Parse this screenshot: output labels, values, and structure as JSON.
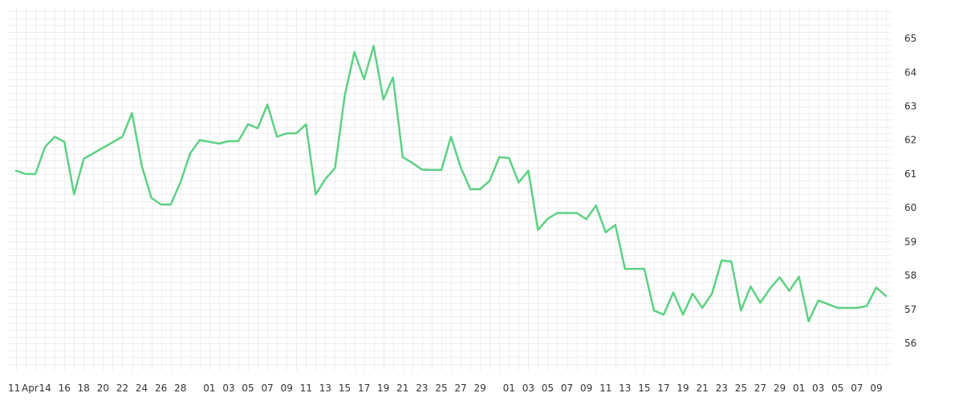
{
  "chart_data": {
    "type": "line",
    "title": "",
    "xlabel": "",
    "ylabel": "",
    "ylim": [
      55.2,
      65.9
    ],
    "y_ticks": [
      56,
      57,
      58,
      59,
      60,
      61,
      62,
      63,
      64,
      65
    ],
    "y_axis_position": "right",
    "grid": true,
    "legend": "none",
    "line_color": "#5cd183",
    "x_tick_labels": [
      "11",
      "Apr",
      "14",
      "16",
      "18",
      "20",
      "22",
      "24",
      "26",
      "28",
      "01",
      "03",
      "05",
      "07",
      "09",
      "11",
      "13",
      "15",
      "17",
      "19",
      "21",
      "23",
      "25",
      "27",
      "29",
      "01",
      "03",
      "05",
      "07",
      "09",
      "11",
      "13",
      "15",
      "17",
      "19",
      "21",
      "23",
      "25",
      "27",
      "29",
      "01",
      "03",
      "05",
      "07",
      "09"
    ],
    "series": [
      {
        "x": [
          "04-11",
          "04-12",
          "04-13",
          "04-14",
          "04-15",
          "04-16",
          "04-17",
          "04-18",
          "04-22",
          "04-23",
          "04-24",
          "04-25",
          "04-26",
          "04-27",
          "04-28",
          "04-29",
          "04-30",
          "05-02",
          "05-03",
          "05-04",
          "05-05",
          "05-06",
          "05-07",
          "05-08",
          "05-09",
          "05-10",
          "05-11",
          "05-12",
          "05-13",
          "05-14",
          "05-15",
          "05-16",
          "05-17",
          "05-18",
          "05-19",
          "05-20",
          "05-21",
          "05-22",
          "05-23",
          "05-24",
          "05-25",
          "05-26",
          "05-27",
          "05-28",
          "05-29",
          "05-30",
          "05-31",
          "06-01",
          "06-02",
          "06-03",
          "06-04",
          "06-05",
          "06-06",
          "06-07",
          "06-08",
          "06-09",
          "06-10",
          "06-11",
          "06-12",
          "06-13",
          "06-14",
          "06-15",
          "06-16",
          "06-17",
          "06-18",
          "06-19",
          "06-20",
          "06-21",
          "06-22",
          "06-23",
          "06-24",
          "06-25",
          "06-26",
          "06-27",
          "06-28",
          "06-29",
          "06-30",
          "07-01",
          "07-02",
          "07-03",
          "07-04",
          "07-05",
          "07-06",
          "07-07",
          "07-08",
          "07-09",
          "07-10"
        ],
        "values": [
          61.1,
          61.0,
          61.0,
          61.8,
          62.1,
          61.95,
          60.4,
          61.45,
          62.1,
          62.8,
          61.25,
          60.3,
          60.1,
          60.1,
          60.75,
          61.6,
          62.0,
          61.9,
          61.97,
          61.97,
          62.47,
          62.35,
          63.05,
          62.1,
          62.2,
          62.2,
          62.47,
          60.4,
          60.85,
          61.18,
          63.3,
          64.6,
          63.8,
          64.78,
          63.2,
          63.85,
          61.5,
          61.33,
          61.13,
          61.12,
          61.12,
          62.1,
          61.2,
          60.55,
          60.55,
          60.8,
          61.5,
          61.47,
          60.75,
          61.1,
          59.35,
          59.68,
          59.85,
          59.85,
          59.85,
          59.67,
          60.07,
          59.28,
          59.5,
          58.2,
          58.2,
          58.2,
          56.97,
          56.85,
          57.5,
          56.85,
          57.47,
          57.05,
          57.47,
          58.45,
          58.42,
          56.97,
          57.68,
          57.2,
          57.62,
          57.95,
          57.55,
          57.97,
          56.65,
          57.27,
          57.16,
          57.05,
          57.05,
          57.05,
          57.1,
          57.65,
          57.4
        ]
      }
    ]
  }
}
